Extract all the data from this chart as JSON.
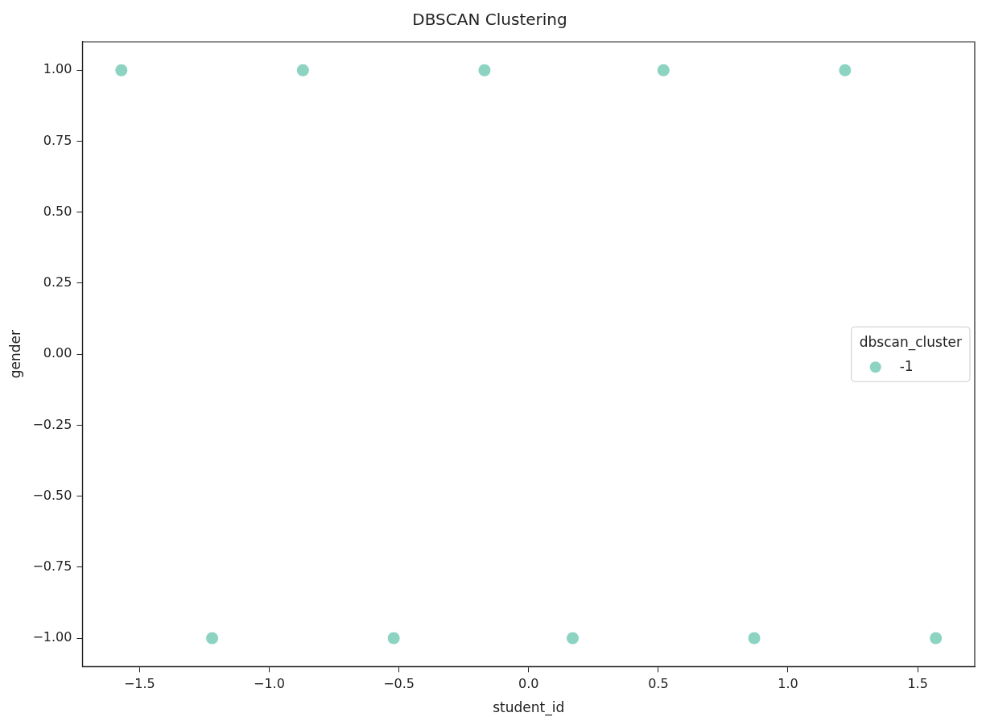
{
  "chart_data": {
    "type": "scatter",
    "title": "DBSCAN Clustering",
    "xlabel": "student_id",
    "ylabel": "gender",
    "legend_title": "dbscan_cluster",
    "series": [
      {
        "name": "-1",
        "color": "#8dd3c2",
        "x": [
          -1.57,
          -0.87,
          -0.17,
          0.52,
          1.22,
          -1.22,
          -0.52,
          0.17,
          0.87,
          1.57
        ],
        "values": [
          1,
          1,
          1,
          1,
          1,
          -1,
          -1,
          -1,
          -1,
          -1
        ]
      }
    ],
    "xlim": [
      -1.72,
      1.72
    ],
    "ylim": [
      -1.1,
      1.1
    ],
    "xticks": [
      {
        "value": -1.5,
        "label": "−1.5"
      },
      {
        "value": -1.0,
        "label": "−1.0"
      },
      {
        "value": -0.5,
        "label": "−0.5"
      },
      {
        "value": 0,
        "label": "0.0"
      },
      {
        "value": 0.5,
        "label": "0.5"
      },
      {
        "value": 1.0,
        "label": "1.0"
      },
      {
        "value": 1.5,
        "label": "1.5"
      }
    ],
    "yticks": [
      {
        "value": -1,
        "label": "−1.00"
      },
      {
        "value": -0.75,
        "label": "−0.75"
      },
      {
        "value": -0.5,
        "label": "−0.50"
      },
      {
        "value": -0.25,
        "label": "−0.25"
      },
      {
        "value": 0,
        "label": "0.00"
      },
      {
        "value": 0.25,
        "label": "0.25"
      },
      {
        "value": 0.5,
        "label": "0.50"
      },
      {
        "value": 0.75,
        "label": "0.75"
      },
      {
        "value": 1,
        "label": "1.00"
      }
    ],
    "legend": "right",
    "marker": "circle",
    "grid": false
  }
}
